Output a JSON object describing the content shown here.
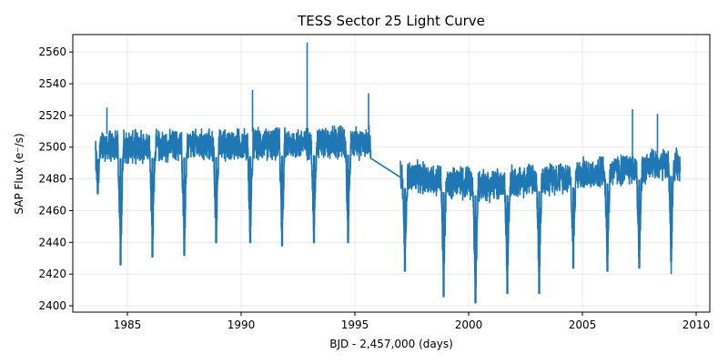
{
  "chart_data": {
    "type": "line",
    "title": "TESS Sector 25 Light Curve",
    "xlabel": "BJD - 2,457,000 (days)",
    "ylabel": "SAP Flux (e⁻/s)",
    "xlim": [
      1982.6,
      2010.6
    ],
    "ylim": [
      2396,
      2571
    ],
    "xticks": [
      1985,
      1990,
      1995,
      2000,
      2005,
      2010
    ],
    "yticks": [
      2400,
      2420,
      2440,
      2460,
      2480,
      2500,
      2520,
      2540,
      2560
    ],
    "grid": true,
    "legend": "none",
    "series_color": "#1f77b4",
    "segments": [
      {
        "x_start": 1983.6,
        "x_end": 1995.7,
        "baseline_start": 2500,
        "baseline_end": 2503,
        "noise_amplitude": 10
      },
      {
        "x_start": 1997.0,
        "x_end": 2009.3,
        "baseline_start": 2482,
        "baseline_end": 2490,
        "noise_amplitude": 10,
        "baseline_min": 2476,
        "baseline_min_x": 2001.0
      }
    ],
    "gap_connector": {
      "x": [
        1995.7,
        1997.0
      ],
      "y": [
        2493,
        2481
      ]
    },
    "noise_spikes": [
      {
        "x": 1992.9,
        "y": 2566
      },
      {
        "x": 1995.6,
        "y": 2534
      },
      {
        "x": 2007.2,
        "y": 2524
      },
      {
        "x": 2008.3,
        "y": 2521
      },
      {
        "x": 1984.1,
        "y": 2525
      },
      {
        "x": 1990.5,
        "y": 2536
      }
    ],
    "dips": [
      {
        "x": 1983.7,
        "min": 2471
      },
      {
        "x": 1984.7,
        "min": 2426
      },
      {
        "x": 1986.1,
        "min": 2431
      },
      {
        "x": 1987.5,
        "min": 2432
      },
      {
        "x": 1988.9,
        "min": 2440
      },
      {
        "x": 1990.4,
        "min": 2440
      },
      {
        "x": 1991.8,
        "min": 2438
      },
      {
        "x": 1993.2,
        "min": 2440
      },
      {
        "x": 1994.7,
        "min": 2440
      },
      {
        "x": 1997.2,
        "min": 2422
      },
      {
        "x": 1998.9,
        "min": 2406
      },
      {
        "x": 2000.3,
        "min": 2402
      },
      {
        "x": 2001.7,
        "min": 2408
      },
      {
        "x": 2003.1,
        "min": 2408
      },
      {
        "x": 2004.6,
        "min": 2424
      },
      {
        "x": 2006.1,
        "min": 2422
      },
      {
        "x": 2007.5,
        "min": 2424
      },
      {
        "x": 2008.9,
        "min": 2428
      }
    ]
  }
}
